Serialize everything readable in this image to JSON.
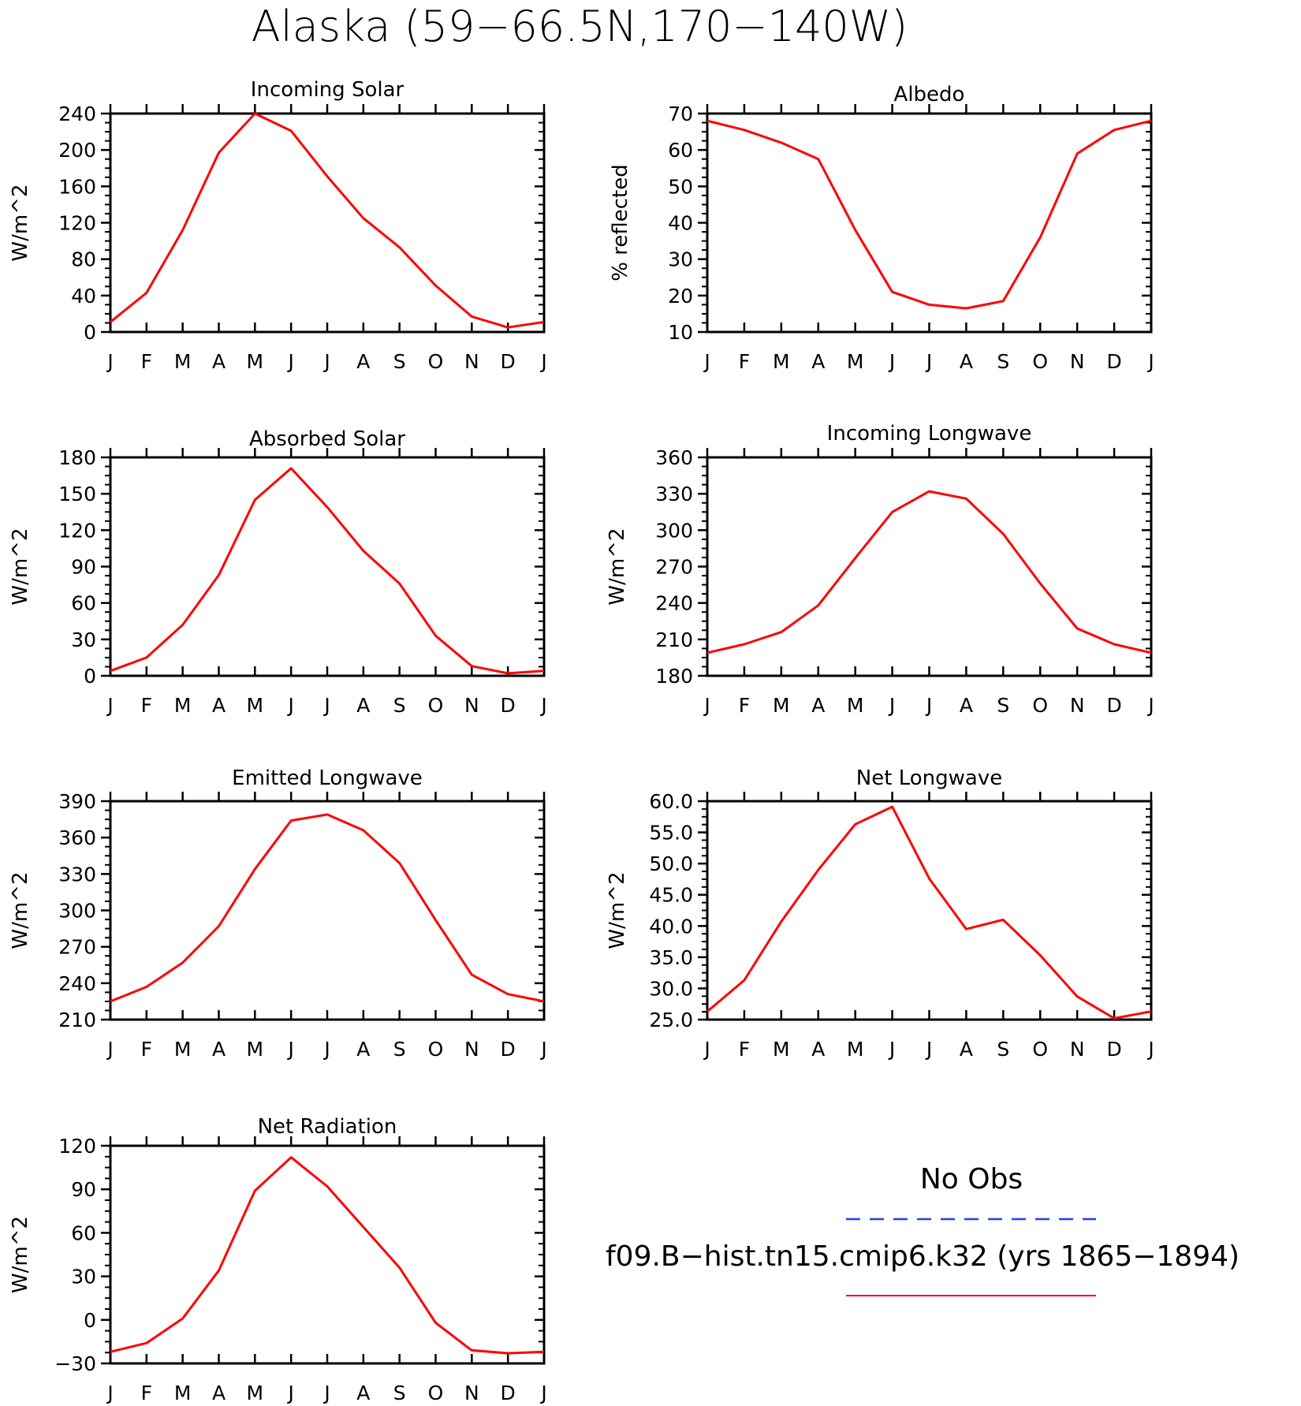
{
  "title": "Alaska (59−66.5N,170−140W)",
  "legend": {
    "obs_label": "No Obs",
    "obs_color": "#1f3fff",
    "model_label": "f09.B−hist.tn15.cmip6.k32 (yrs 1865−1894)",
    "model_color": "#ff0000"
  },
  "months": [
    "J",
    "F",
    "M",
    "A",
    "M",
    "J",
    "J",
    "A",
    "S",
    "O",
    "N",
    "D",
    "J"
  ],
  "chart_data": [
    {
      "type": "line",
      "title": "Incoming Solar",
      "ylabel": "W/m^2",
      "ylim": [
        0,
        240
      ],
      "yticks": [
        "0",
        "40",
        "80",
        "120",
        "160",
        "200",
        "240"
      ],
      "series": [
        {
          "values": [
            11,
            43,
            112,
            197,
            240,
            221,
            171,
            125,
            93,
            51,
            17,
            5,
            11
          ]
        }
      ]
    },
    {
      "type": "line",
      "title": "Albedo",
      "ylabel": "% reflected",
      "ylim": [
        10,
        70
      ],
      "yticks": [
        "10",
        "20",
        "30",
        "40",
        "50",
        "60",
        "70"
      ],
      "series": [
        {
          "values": [
            68,
            65.5,
            62,
            57.5,
            38,
            21,
            17.5,
            16.5,
            18.5,
            36,
            59,
            65.5,
            68
          ]
        }
      ]
    },
    {
      "type": "line",
      "title": "Absorbed Solar",
      "ylabel": "W/m^2",
      "ylim": [
        0,
        180
      ],
      "yticks": [
        "0",
        "30",
        "60",
        "90",
        "120",
        "150",
        "180"
      ],
      "series": [
        {
          "values": [
            4,
            15,
            42,
            83,
            145,
            171,
            139,
            103,
            76,
            33,
            8,
            2,
            4
          ]
        }
      ]
    },
    {
      "type": "line",
      "title": "Incoming Longwave",
      "ylabel": "W/m^2",
      "ylim": [
        180,
        360
      ],
      "yticks": [
        "180",
        "210",
        "240",
        "270",
        "300",
        "330",
        "360"
      ],
      "series": [
        {
          "values": [
            199,
            206,
            216,
            238,
            277,
            315,
            332,
            326,
            297,
            256,
            219,
            206,
            199
          ]
        }
      ]
    },
    {
      "type": "line",
      "title": "Emitted Longwave",
      "ylabel": "W/m^2",
      "ylim": [
        210,
        390
      ],
      "yticks": [
        "210",
        "240",
        "270",
        "300",
        "330",
        "360",
        "390"
      ],
      "series": [
        {
          "values": [
            225,
            237,
            257,
            287,
            334,
            374,
            379,
            366,
            339,
            292,
            247,
            231,
            225
          ]
        }
      ]
    },
    {
      "type": "line",
      "title": "Net Longwave",
      "ylabel": "W/m^2",
      "ylim": [
        25,
        60
      ],
      "yticks": [
        "25.0",
        "30.0",
        "35.0",
        "40.0",
        "45.0",
        "50.0",
        "55.0",
        "60.0"
      ],
      "series": [
        {
          "values": [
            26.3,
            31.3,
            40.7,
            49.0,
            56.3,
            59.1,
            47.6,
            39.5,
            41.0,
            35.3,
            28.7,
            25.2,
            26.3
          ]
        }
      ]
    },
    {
      "type": "line",
      "title": "Net Radiation",
      "ylabel": "W/m^2",
      "ylim": [
        -30,
        120
      ],
      "yticks": [
        "−30",
        "0",
        "30",
        "60",
        "90",
        "120"
      ],
      "series": [
        {
          "values": [
            -22,
            -16,
            1,
            34,
            89,
            112,
            92,
            64,
            36,
            -2,
            -21,
            -23,
            -22
          ]
        }
      ]
    }
  ]
}
